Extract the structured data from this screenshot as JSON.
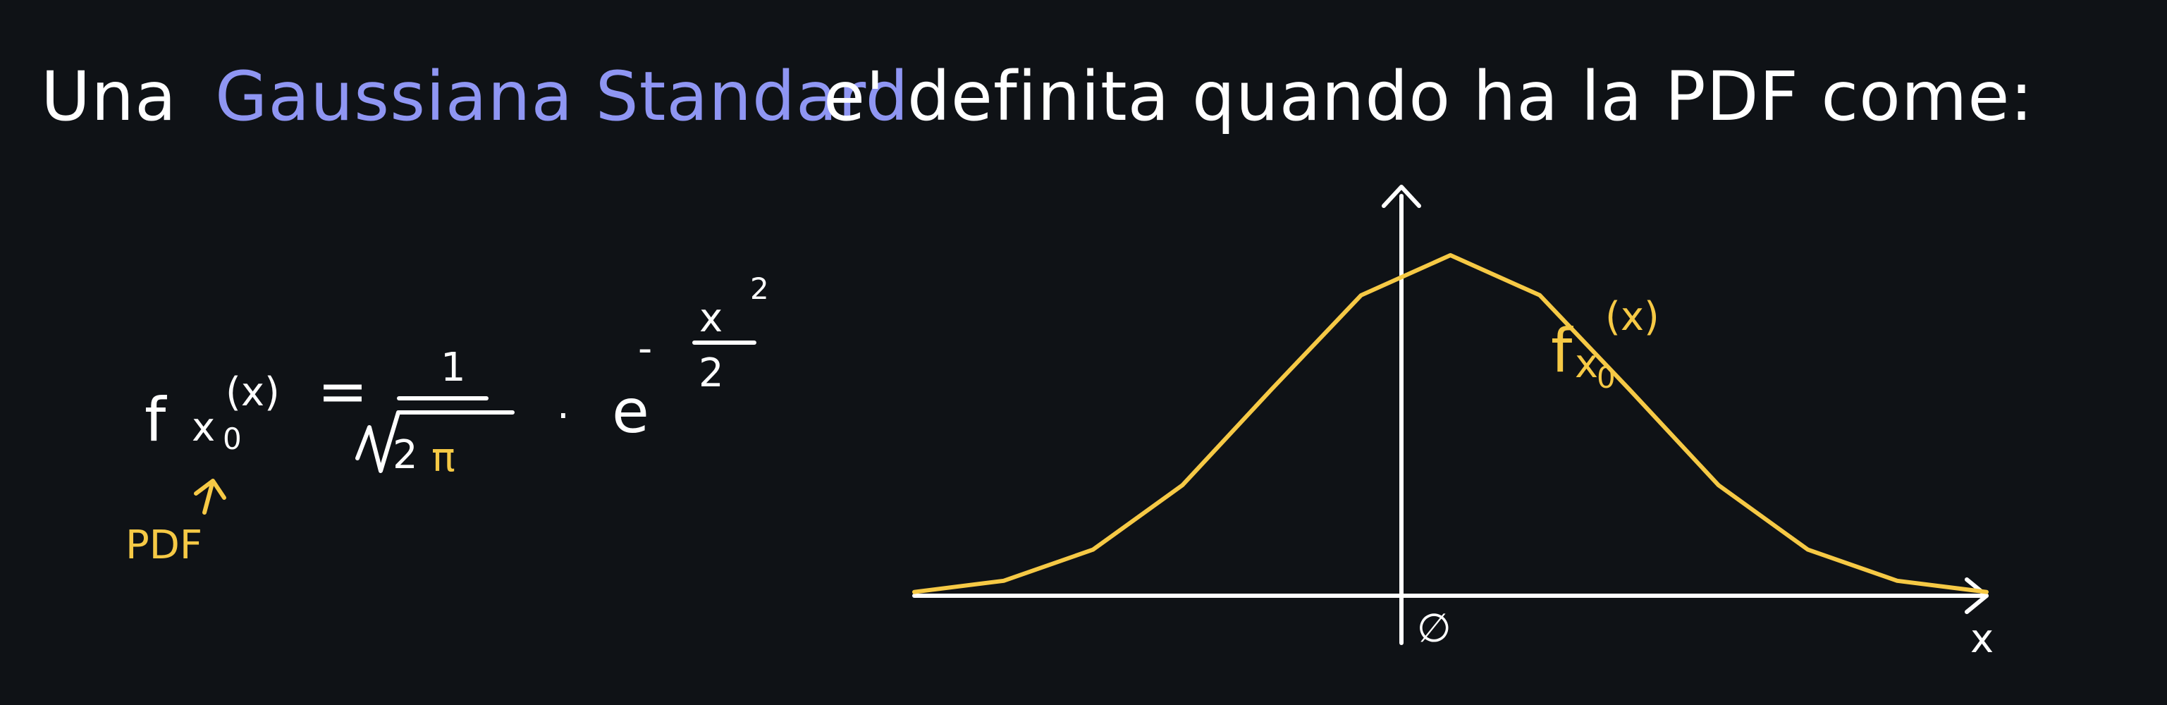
{
  "canvas": {
    "background": "#0f1216"
  },
  "heading": {
    "part1": "Una",
    "part2": "Gaussiana Standard",
    "part3": "e' definita quando ha la PDF come:"
  },
  "formula": {
    "lhs_func": "f",
    "lhs_sub": "x",
    "lhs_sub_sub": "0",
    "lhs_arg": "(x)",
    "equals": "=",
    "numerator": "1",
    "radicand_number": "2",
    "radicand_pi": "π",
    "dot": "·",
    "exp_base": "e",
    "exp_sign": "-",
    "exp_numerator": "x",
    "exp_power": "2",
    "exp_denominator": "2",
    "annotation": "PDF"
  },
  "graph": {
    "label_func": "f",
    "label_sub": "x",
    "label_sub_sub": "0",
    "label_arg": "(x)",
    "x_axis_label": "x",
    "origin_label": "∅"
  },
  "colors": {
    "white": "#ffffff",
    "blue": "#8f96f3",
    "yellow": "#f6c945"
  },
  "chart_data": {
    "type": "line",
    "series": [
      {
        "name": "",
        "x": [
          -3,
          -2.5,
          -2,
          -1.5,
          -1,
          -0.5,
          0,
          0.5,
          1,
          1.5,
          2,
          2.5,
          3
        ],
        "y": [
          0.0044,
          0.0175,
          0.054,
          0.1295,
          0.242,
          0.352,
          0.3989,
          0.352,
          0.242,
          0.1295,
          0.054,
          0.0175,
          0.0044
        ]
      }
    ],
    "x_label": "x",
    "x_tick_labels": [
      "∅"
    ],
    "grid": false
  }
}
